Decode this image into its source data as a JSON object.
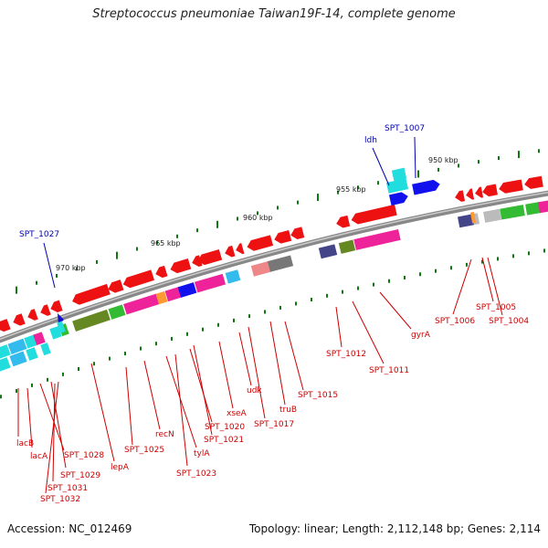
{
  "title": "Streptococcus pneumoniae Taiwan19F-14, complete genome",
  "accession": "Accession: NC_012469",
  "topology": "Topology: linear; Length: 2,112,148 bp; Genes: 2,114",
  "scale_labels": [
    "950 kbp",
    "955 kbp",
    "960 kbp",
    "965 kbp",
    "970 kbp"
  ],
  "blue_labels": [
    "SPT_1007",
    "ldh",
    "SPT_1027"
  ],
  "red_labels": [
    "lacB",
    "lacA",
    "SPT_1028",
    "SPT_1029",
    "SPT_1031",
    "SPT_1032",
    "lepA",
    "SPT_1025",
    "recN",
    "tylA",
    "SPT_1023",
    "SPT_1020",
    "SPT_1021",
    "xseA",
    "udk",
    "SPT_1017",
    "truB",
    "SPT_1015",
    "SPT_1012",
    "SPT_1011",
    "gyrA",
    "SPT_1006",
    "SPT_1005",
    "SPT_1004"
  ],
  "colors": {
    "red": "#ee1111",
    "pink": "#ee2299",
    "green": "#33bb33",
    "olive": "#668822",
    "cyan": "#22dddd",
    "blue": "#1111ee",
    "navy": "#444488",
    "gray": "#777777",
    "salmon": "#ee8888",
    "orange": "#ff9933",
    "silver": "#bbbbbb",
    "sky": "#33bbee",
    "label_red": "#cc0000",
    "label_blue": "#0000aa",
    "tick_green": "#117711"
  }
}
